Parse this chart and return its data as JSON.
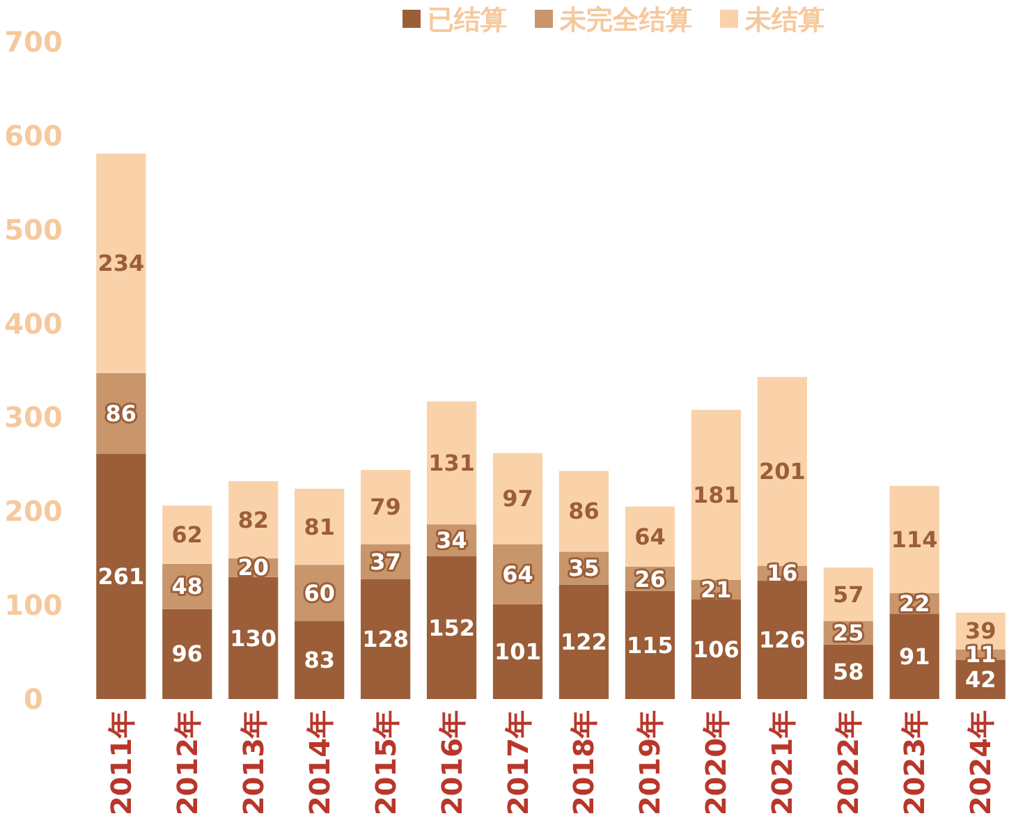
{
  "chart_data": {
    "type": "bar",
    "stacked": true,
    "categories": [
      "2011年",
      "2012年",
      "2013年",
      "2014年",
      "2015年",
      "2016年",
      "2017年",
      "2018年",
      "2019年",
      "2020年",
      "2021年",
      "2022年",
      "2023年",
      "2024年"
    ],
    "series": [
      {
        "name": "已结算",
        "color": "#9b5e38",
        "values": [
          261,
          96,
          130,
          83,
          128,
          152,
          101,
          122,
          115,
          106,
          126,
          58,
          91,
          42
        ]
      },
      {
        "name": "未完全结算",
        "color": "#c9956b",
        "values": [
          86,
          48,
          20,
          60,
          37,
          34,
          64,
          35,
          26,
          21,
          16,
          25,
          22,
          11
        ]
      },
      {
        "name": "未结算",
        "color": "#f9d2aa",
        "values": [
          234,
          62,
          82,
          81,
          79,
          131,
          97,
          86,
          64,
          181,
          201,
          57,
          114,
          39
        ]
      }
    ],
    "ylim": [
      0,
      700
    ],
    "yticks": [
      0,
      100,
      200,
      300,
      400,
      500,
      600,
      700
    ],
    "grid": false,
    "legend": "top",
    "data_labels": true
  }
}
